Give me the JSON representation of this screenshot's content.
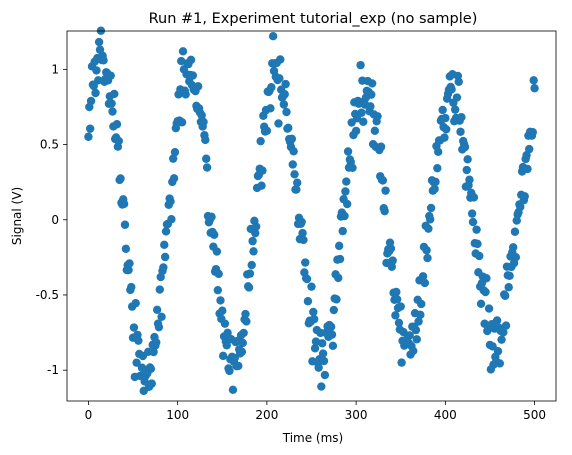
{
  "chart_data": {
    "type": "scatter",
    "title": "Run #1, Experiment tutorial_exp (no sample)",
    "xlabel": "Time (ms)",
    "ylabel": "Signal (V)",
    "xlim": [
      -24,
      524
    ],
    "ylim": [
      -1.205,
      1.255
    ],
    "xticks": [
      0,
      100,
      200,
      300,
      400,
      500
    ],
    "xtick_labels": [
      "0",
      "100",
      "200",
      "300",
      "400",
      "500"
    ],
    "yticks": [
      -1,
      -0.5,
      0,
      0.5,
      1
    ],
    "ytick_labels": [
      "-1",
      "-0.5",
      "0",
      "0.5",
      "1"
    ],
    "grid": false,
    "marker_color": "#1f77b4",
    "series": [
      {
        "model": "damped sine with noise (points estimated from image)",
        "x_start": 0,
        "x_end": 500,
        "n_points": 501,
        "amplitude": 1.08,
        "decay_per_ms": 0.00071,
        "period_ms": 98,
        "phase_rad": 0.57,
        "noise_sd": 0.1,
        "seed": 7
      }
    ]
  }
}
